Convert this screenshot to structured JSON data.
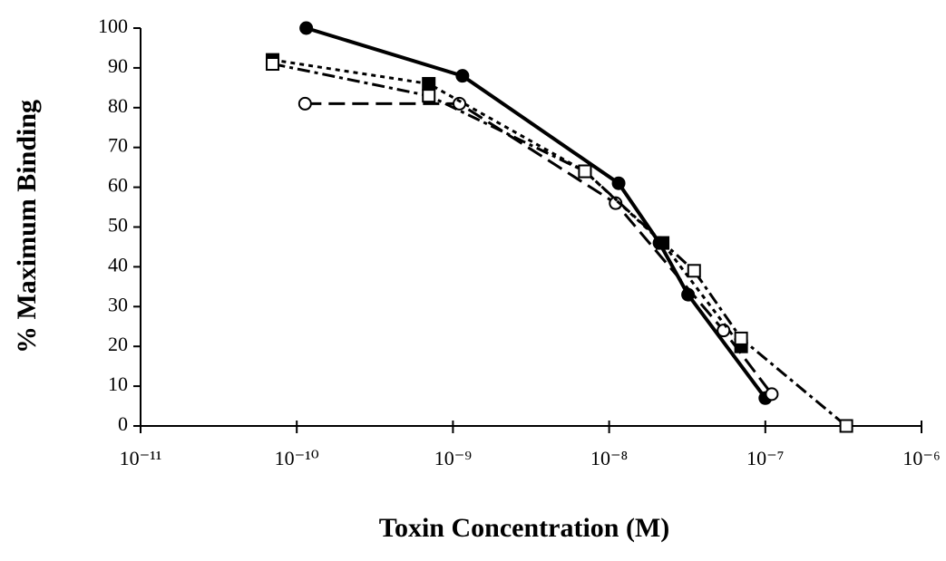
{
  "chart_data": {
    "type": "line",
    "xlabel": "Toxin Concentration (M)",
    "ylabel": "% Maximum Binding",
    "xscale": "log",
    "xlim": [
      1e-11,
      1e-06
    ],
    "xticks": [
      {
        "value": 1e-11,
        "label": "10⁻¹¹"
      },
      {
        "value": 1e-10,
        "label": "10⁻¹⁰"
      },
      {
        "value": 1e-09,
        "label": "10⁻⁹"
      },
      {
        "value": 1e-08,
        "label": "10⁻⁸"
      },
      {
        "value": 1e-07,
        "label": "10⁻⁷"
      },
      {
        "value": 1e-06,
        "label": "10⁻⁶"
      }
    ],
    "ylim": [
      0,
      100
    ],
    "yticks": [
      0,
      10,
      20,
      30,
      40,
      50,
      60,
      70,
      80,
      90,
      100
    ],
    "grid": false,
    "series": [
      {
        "color": "#000",
        "marker": "filled-circle",
        "dash": "solid",
        "x": [
          1.15e-10,
          1.15e-09,
          1.15e-08,
          2.1e-08,
          3.2e-08,
          1e-07
        ],
        "values": [
          100,
          88,
          61,
          46,
          33,
          7
        ]
      },
      {
        "color": "#000",
        "marker": "open-circle",
        "dash": "dashed",
        "x": [
          1.13e-10,
          1.1e-09,
          1.1e-08,
          5.4e-08,
          1.1e-07
        ],
        "values": [
          81,
          81,
          56,
          24,
          8
        ]
      },
      {
        "color": "#000",
        "marker": "filled-square",
        "dash": "dotted",
        "x": [
          7e-11,
          7e-10,
          7e-09,
          2.2e-08,
          7e-08
        ],
        "values": [
          92,
          86,
          64,
          46,
          20
        ]
      },
      {
        "color": "#000",
        "marker": "open-square",
        "dash": "dashdot",
        "x": [
          7e-11,
          7e-10,
          7e-09,
          3.5e-08,
          7e-08,
          3.3e-07
        ],
        "values": [
          91,
          83,
          64,
          39,
          22,
          0
        ]
      }
    ]
  }
}
